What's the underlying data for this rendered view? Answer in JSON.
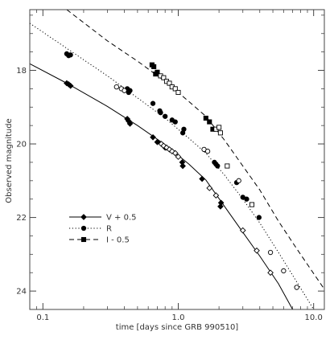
{
  "chart_data": {
    "type": "scatter",
    "xlabel": "time [days since GRB 990510]",
    "ylabel": "Observed magnitude",
    "x_scale": "log",
    "y_inverted": true,
    "xlim": [
      0.08,
      12.0
    ],
    "ylim": [
      16.35,
      24.5
    ],
    "x_ticks": [
      {
        "value": 0.1,
        "label": "0.1"
      },
      {
        "value": 1.0,
        "label": "1.0"
      },
      {
        "value": 10.0,
        "label": "10.0"
      }
    ],
    "y_ticks": [
      {
        "value": 18,
        "label": "18"
      },
      {
        "value": 20,
        "label": "20"
      },
      {
        "value": 22,
        "label": "22"
      },
      {
        "value": 24,
        "label": "24"
      }
    ],
    "grid": false,
    "legend_position": "lower-left",
    "series": [
      {
        "name": "V + 0.5",
        "marker": "filled-diamond",
        "line": "solid",
        "color": "#000000",
        "points": [
          {
            "x": 0.15,
            "y": 18.35
          },
          {
            "x": 0.155,
            "y": 18.38
          },
          {
            "x": 0.16,
            "y": 18.42
          },
          {
            "x": 0.42,
            "y": 19.32
          },
          {
            "x": 0.43,
            "y": 19.38
          },
          {
            "x": 0.44,
            "y": 19.45
          },
          {
            "x": 0.65,
            "y": 19.82
          },
          {
            "x": 0.7,
            "y": 19.95
          },
          {
            "x": 0.8,
            "y": 20.1
          },
          {
            "x": 1.07,
            "y": 20.5
          },
          {
            "x": 1.08,
            "y": 20.6
          },
          {
            "x": 1.5,
            "y": 20.95
          },
          {
            "x": 2.05,
            "y": 21.7
          },
          {
            "x": 2.07,
            "y": 21.6
          }
        ],
        "open_points": [
          {
            "x": 0.75,
            "y": 20.0
          },
          {
            "x": 0.78,
            "y": 20.05
          },
          {
            "x": 0.82,
            "y": 20.1
          },
          {
            "x": 0.86,
            "y": 20.15
          },
          {
            "x": 0.9,
            "y": 20.2
          },
          {
            "x": 0.95,
            "y": 20.25
          },
          {
            "x": 1.0,
            "y": 20.35
          },
          {
            "x": 1.7,
            "y": 21.2
          },
          {
            "x": 1.9,
            "y": 21.4
          },
          {
            "x": 3.0,
            "y": 22.35
          },
          {
            "x": 3.8,
            "y": 22.9
          },
          {
            "x": 4.8,
            "y": 23.5
          }
        ],
        "model_curve": [
          {
            "x": 0.08,
            "y": 17.82
          },
          {
            "x": 0.15,
            "y": 18.35
          },
          {
            "x": 0.3,
            "y": 18.98
          },
          {
            "x": 0.5,
            "y": 19.5
          },
          {
            "x": 0.8,
            "y": 20.02
          },
          {
            "x": 1.2,
            "y": 20.55
          },
          {
            "x": 1.6,
            "y": 20.98
          },
          {
            "x": 2.2,
            "y": 21.7
          },
          {
            "x": 3.0,
            "y": 22.4
          },
          {
            "x": 4.0,
            "y": 23.05
          },
          {
            "x": 5.5,
            "y": 23.8
          },
          {
            "x": 7.0,
            "y": 24.5
          }
        ]
      },
      {
        "name": "R",
        "marker": "filled-circle",
        "line": "dotted",
        "color": "#000000",
        "points": [
          {
            "x": 0.15,
            "y": 17.55
          },
          {
            "x": 0.155,
            "y": 17.6
          },
          {
            "x": 0.16,
            "y": 17.58
          },
          {
            "x": 0.42,
            "y": 18.5
          },
          {
            "x": 0.43,
            "y": 18.6
          },
          {
            "x": 0.44,
            "y": 18.55
          },
          {
            "x": 0.65,
            "y": 18.9
          },
          {
            "x": 0.73,
            "y": 19.1
          },
          {
            "x": 0.74,
            "y": 19.15
          },
          {
            "x": 0.8,
            "y": 19.25
          },
          {
            "x": 0.9,
            "y": 19.35
          },
          {
            "x": 0.95,
            "y": 19.4
          },
          {
            "x": 1.08,
            "y": 19.7
          },
          {
            "x": 1.1,
            "y": 19.6
          },
          {
            "x": 1.85,
            "y": 20.5
          },
          {
            "x": 1.9,
            "y": 20.55
          },
          {
            "x": 1.95,
            "y": 20.6
          },
          {
            "x": 2.7,
            "y": 21.05
          },
          {
            "x": 3.0,
            "y": 21.45
          },
          {
            "x": 3.2,
            "y": 21.5
          },
          {
            "x": 3.95,
            "y": 22.0
          }
        ],
        "open_points": [
          {
            "x": 0.35,
            "y": 18.45
          },
          {
            "x": 0.38,
            "y": 18.5
          },
          {
            "x": 0.4,
            "y": 18.55
          },
          {
            "x": 1.55,
            "y": 20.15
          },
          {
            "x": 1.65,
            "y": 20.2
          },
          {
            "x": 2.8,
            "y": 21.0
          },
          {
            "x": 4.8,
            "y": 22.95
          },
          {
            "x": 6.0,
            "y": 23.45
          },
          {
            "x": 7.5,
            "y": 23.9
          }
        ],
        "model_curve": [
          {
            "x": 0.08,
            "y": 16.72
          },
          {
            "x": 0.15,
            "y": 17.4
          },
          {
            "x": 0.3,
            "y": 18.15
          },
          {
            "x": 0.5,
            "y": 18.75
          },
          {
            "x": 0.8,
            "y": 19.3
          },
          {
            "x": 1.2,
            "y": 19.85
          },
          {
            "x": 1.6,
            "y": 20.25
          },
          {
            "x": 2.2,
            "y": 20.85
          },
          {
            "x": 3.0,
            "y": 21.5
          },
          {
            "x": 4.0,
            "y": 22.15
          },
          {
            "x": 5.5,
            "y": 22.95
          },
          {
            "x": 7.5,
            "y": 23.75
          },
          {
            "x": 10.0,
            "y": 24.5
          }
        ]
      },
      {
        "name": "I - 0.5",
        "marker": "filled-square",
        "line": "dashed",
        "color": "#000000",
        "points": [
          {
            "x": 0.64,
            "y": 17.85
          },
          {
            "x": 0.66,
            "y": 17.9
          },
          {
            "x": 0.68,
            "y": 18.1
          },
          {
            "x": 0.7,
            "y": 18.05
          },
          {
            "x": 1.6,
            "y": 19.3
          },
          {
            "x": 1.7,
            "y": 19.4
          },
          {
            "x": 1.8,
            "y": 19.6
          }
        ],
        "open_points": [
          {
            "x": 0.74,
            "y": 18.15
          },
          {
            "x": 0.78,
            "y": 18.2
          },
          {
            "x": 0.82,
            "y": 18.3
          },
          {
            "x": 0.86,
            "y": 18.35
          },
          {
            "x": 0.9,
            "y": 18.45
          },
          {
            "x": 0.95,
            "y": 18.5
          },
          {
            "x": 1.0,
            "y": 18.6
          },
          {
            "x": 1.9,
            "y": 19.6
          },
          {
            "x": 2.0,
            "y": 19.55
          },
          {
            "x": 2.05,
            "y": 19.7
          },
          {
            "x": 2.3,
            "y": 20.6
          },
          {
            "x": 3.5,
            "y": 21.65
          }
        ],
        "model_curve": [
          {
            "x": 0.15,
            "y": 16.35
          },
          {
            "x": 0.3,
            "y": 17.2
          },
          {
            "x": 0.5,
            "y": 17.75
          },
          {
            "x": 0.8,
            "y": 18.3
          },
          {
            "x": 1.2,
            "y": 18.85
          },
          {
            "x": 1.6,
            "y": 19.25
          },
          {
            "x": 2.2,
            "y": 19.9
          },
          {
            "x": 3.0,
            "y": 20.6
          },
          {
            "x": 4.0,
            "y": 21.25
          },
          {
            "x": 5.5,
            "y": 22.1
          },
          {
            "x": 7.5,
            "y": 22.85
          },
          {
            "x": 12.0,
            "y": 23.95
          }
        ]
      }
    ]
  }
}
